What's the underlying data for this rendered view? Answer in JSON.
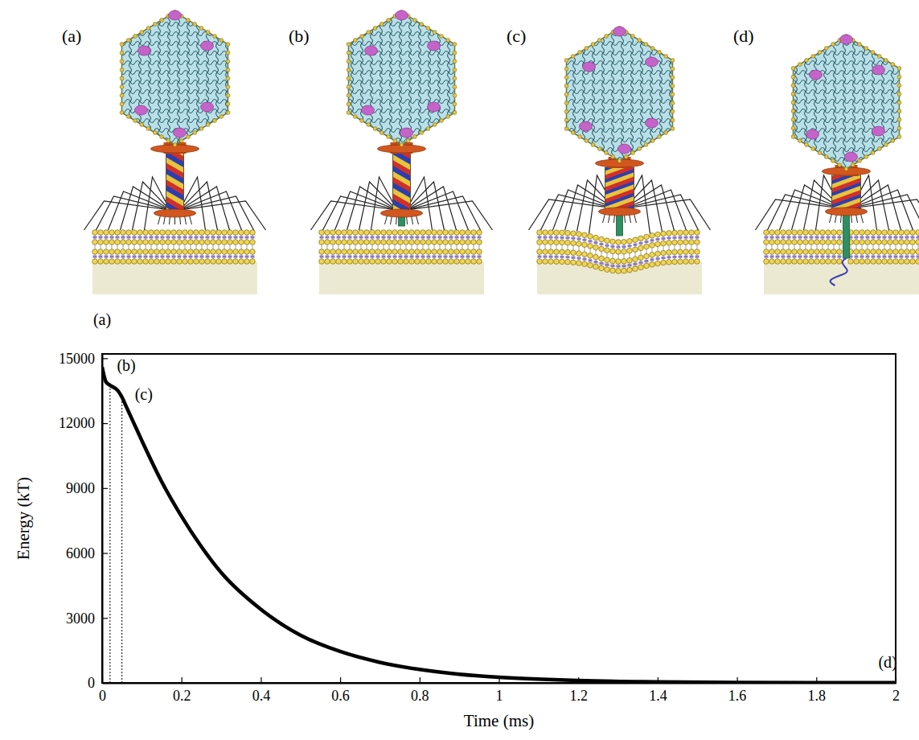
{
  "panels": [
    {
      "label": "(a)"
    },
    {
      "label": "(b)"
    },
    {
      "label": "(c)"
    },
    {
      "label": "(d)"
    }
  ],
  "chart_data": {
    "type": "line",
    "x_label": "Time (ms)",
    "y_label": "Energy (kT)",
    "x": [
      0,
      0.01,
      0.02,
      0.04,
      0.05,
      0.06,
      0.08,
      0.1,
      0.15,
      0.2,
      0.25,
      0.3,
      0.4,
      0.5,
      0.6,
      0.7,
      0.8,
      0.9,
      1.0,
      1.2,
      1.4,
      1.6,
      1.8,
      2.0
    ],
    "values": [
      14600,
      13900,
      13750,
      13500,
      13200,
      12800,
      12000,
      11200,
      9300,
      7700,
      6300,
      5100,
      3400,
      2200,
      1450,
      950,
      620,
      400,
      260,
      110,
      50,
      20,
      10,
      5
    ],
    "color": "#000000",
    "xlim": [
      0,
      2
    ],
    "ylim": [
      0,
      15200
    ],
    "xticks": [
      0,
      0.2,
      0.4,
      0.6,
      0.8,
      1,
      1.2,
      1.4,
      1.6,
      1.8,
      2
    ],
    "yticks": [
      0,
      3000,
      6000,
      9000,
      12000,
      15000
    ],
    "vlines": [
      {
        "x": 0.02,
        "y": 13750
      },
      {
        "x": 0.05,
        "y": 13200
      }
    ],
    "annotations": [
      {
        "text": "(a)",
        "x": 0,
        "y": 16700
      },
      {
        "text": "(b)",
        "x": 0.061,
        "y": 14590
      },
      {
        "text": "(c)",
        "x": 0.105,
        "y": 13250
      },
      {
        "text": "(d)",
        "x": 1.98,
        "y": 860
      }
    ]
  }
}
